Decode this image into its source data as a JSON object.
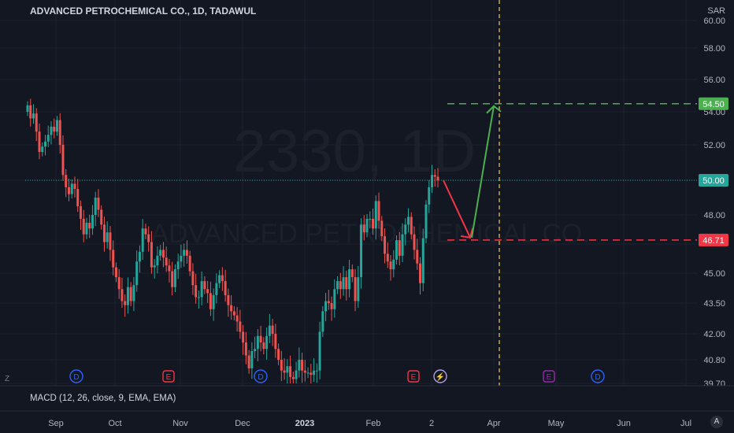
{
  "header": {
    "title": "ADVANCED PETROCHEMICAL CO., 1D, TADAWUL",
    "currency": "SAR"
  },
  "watermark": {
    "symbol": "2330, 1D",
    "name": "ADVANCED PETROCHEMICAL CO."
  },
  "indicator": {
    "label": "MACD (12, 26, close, 9, EMA, EMA)"
  },
  "controls": {
    "z_label": "Z",
    "auto_label": "A"
  },
  "colors": {
    "up": "#26a69a",
    "down": "#ef5350",
    "bg": "#131722",
    "target_green": "#4caf50",
    "target_red": "#f23645",
    "vline": "#f5c542"
  },
  "chart_data": {
    "type": "candlestick",
    "y_axis_ticks": [
      "39.70",
      "40.80",
      "42.00",
      "43.50",
      "45.00",
      "46.71",
      "48.00",
      "50.00",
      "52.00",
      "54.00",
      "54.50",
      "56.00",
      "58.00",
      "60.00"
    ],
    "y_tick_values": [
      39.7,
      40.8,
      42.0,
      43.5,
      45.0,
      46.5,
      48.0,
      50.0,
      52.0,
      54.0,
      56.0,
      58.0,
      60.0
    ],
    "x_axis_ticks": [
      "Sep",
      "Oct",
      "Nov",
      "Dec",
      "2023",
      "Feb",
      "2",
      "Apr",
      "May",
      "Jun",
      "Jul"
    ],
    "price_labels": [
      {
        "text": "54.50",
        "value": 54.5,
        "color": "#4caf50"
      },
      {
        "text": "50.00",
        "value": 50.0,
        "color": "#26a69a"
      },
      {
        "text": "46.71",
        "value": 46.71,
        "color": "#f23645"
      }
    ],
    "current_price": 50.0,
    "closes": [
      54.4,
      53.6,
      53.9,
      52.8,
      51.6,
      51.9,
      52.2,
      52.6,
      53.1,
      52.8,
      53.5,
      52.0,
      50.3,
      49.6,
      49.2,
      49.8,
      49.5,
      48.5,
      47.8,
      47.0,
      47.6,
      47.3,
      48.0,
      49.0,
      48.3,
      47.5,
      46.6,
      47.1,
      46.2,
      45.3,
      44.8,
      44.2,
      43.6,
      43.4,
      44.3,
      43.6,
      44.4,
      45.6,
      46.1,
      47.3,
      47.0,
      46.6,
      45.3,
      45.4,
      45.9,
      46.2,
      45.8,
      45.4,
      45.1,
      44.3,
      45.2,
      45.6,
      45.9,
      46.2,
      45.9,
      45.1,
      44.4,
      43.8,
      43.8,
      44.6,
      44.2,
      44.0,
      43.2,
      43.9,
      44.5,
      44.9,
      44.6,
      43.9,
      43.4,
      43.1,
      42.9,
      42.6,
      42.1,
      41.6,
      41.0,
      40.4,
      41.2,
      41.3,
      41.9,
      41.6,
      41.3,
      41.9,
      42.4,
      42.0,
      41.3,
      40.8,
      40.3,
      40.2,
      40.5,
      40.0,
      39.9,
      40.3,
      40.8,
      40.3,
      40.2,
      40.2,
      40.1,
      40.3,
      40.3,
      42.1,
      43.1,
      43.6,
      43.5,
      43.2,
      44.2,
      44.6,
      44.2,
      44.8,
      44.2,
      45.2,
      44.8,
      43.6,
      44.8,
      47.5,
      47.1,
      47.8,
      47.8,
      47.3,
      48.8,
      47.7,
      46.9,
      46.0,
      45.6,
      45.2,
      45.7,
      46.7,
      45.9,
      47.0,
      47.5,
      47.9,
      47.0,
      46.2,
      45.5,
      44.5,
      46.8,
      48.6,
      49.6,
      50.3,
      50.2,
      50.0
    ],
    "annotations": {
      "target_up": 54.5,
      "target_down": 46.71,
      "event_markers": [
        "D",
        "E",
        "D",
        "E",
        "⚡",
        "E",
        "D"
      ]
    }
  }
}
